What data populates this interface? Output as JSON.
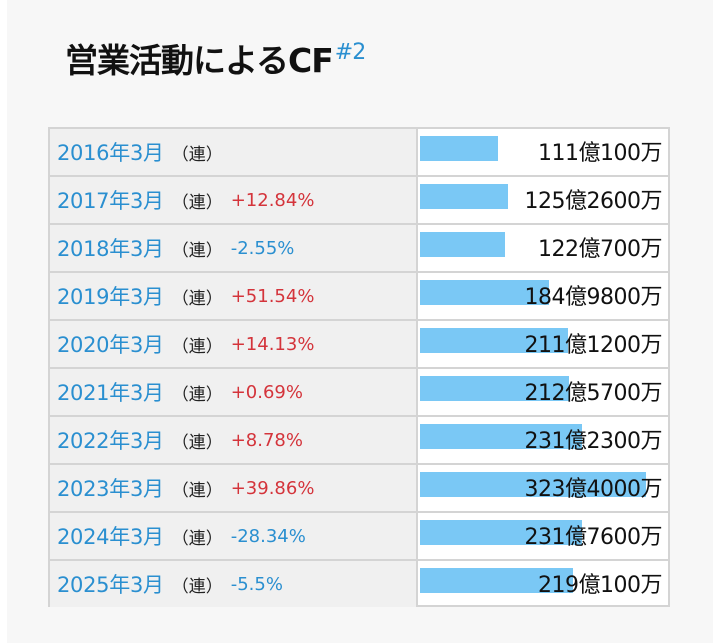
{
  "title": {
    "text": "営業活動によるCF",
    "note": "#2"
  },
  "colors": {
    "year": "#2a8fd0",
    "increase": "#d4343b",
    "decrease": "#2a8fd0",
    "bar": "#7ac8f5"
  },
  "max_value": 32340000000,
  "rows": [
    {
      "year": "2016年3月",
      "type": "（連）",
      "change": "",
      "direction": "",
      "amount": "111億100万",
      "value": 11101000000
    },
    {
      "year": "2017年3月",
      "type": "（連）",
      "change": "+12.84%",
      "direction": "up",
      "amount": "125億2600万",
      "value": 12526000000
    },
    {
      "year": "2018年3月",
      "type": "（連）",
      "change": "-2.55%",
      "direction": "down",
      "amount": "122億700万",
      "value": 12207000000
    },
    {
      "year": "2019年3月",
      "type": "（連）",
      "change": "+51.54%",
      "direction": "up",
      "amount": "184億9800万",
      "value": 18498000000
    },
    {
      "year": "2020年3月",
      "type": "（連）",
      "change": "+14.13%",
      "direction": "up",
      "amount": "211億1200万",
      "value": 21112000000
    },
    {
      "year": "2021年3月",
      "type": "（連）",
      "change": "+0.69%",
      "direction": "up",
      "amount": "212億5700万",
      "value": 21257000000
    },
    {
      "year": "2022年3月",
      "type": "（連）",
      "change": "+8.78%",
      "direction": "up",
      "amount": "231億2300万",
      "value": 23123000000
    },
    {
      "year": "2023年3月",
      "type": "（連）",
      "change": "+39.86%",
      "direction": "up",
      "amount": "323億4000万",
      "value": 32340000000
    },
    {
      "year": "2024年3月",
      "type": "（連）",
      "change": "-28.34%",
      "direction": "down",
      "amount": "231億7600万",
      "value": 23176000000
    },
    {
      "year": "2025年3月",
      "type": "（連）",
      "change": "-5.5%",
      "direction": "down",
      "amount": "219億100万",
      "value": 21901000000
    }
  ]
}
